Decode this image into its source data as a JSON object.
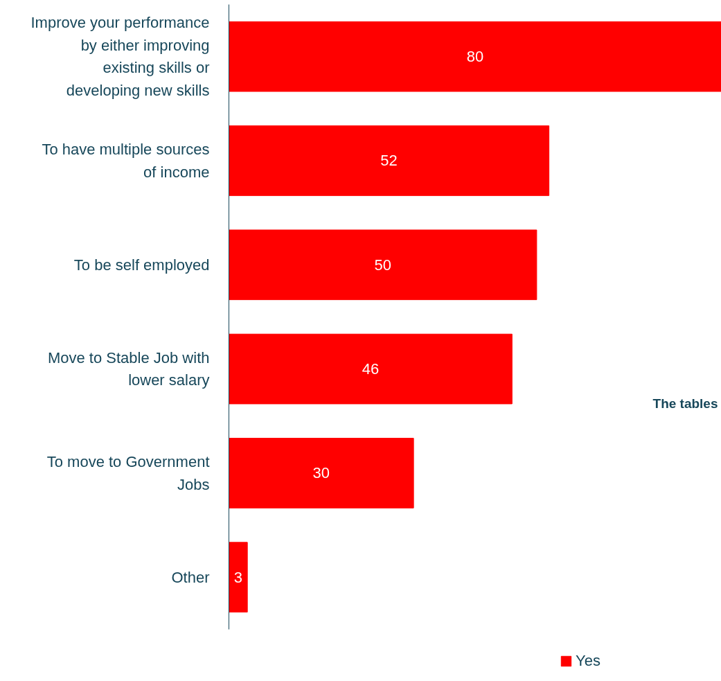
{
  "chart_data": {
    "type": "bar",
    "orientation": "horizontal",
    "categories": [
      "Improve your performance by either improving existing skills or developing new skills",
      "To have multiple sources of income",
      "To be self employed",
      "Move to Stable Job with lower salary",
      "To move to Government Jobs",
      "Other"
    ],
    "series": [
      {
        "name": "Yes",
        "color": "#ff0000",
        "values": [
          80,
          52,
          50,
          46,
          30,
          3
        ]
      }
    ],
    "data_labels": true,
    "legend": "bottom",
    "grid": false,
    "annotations": [
      "The tables"
    ]
  }
}
